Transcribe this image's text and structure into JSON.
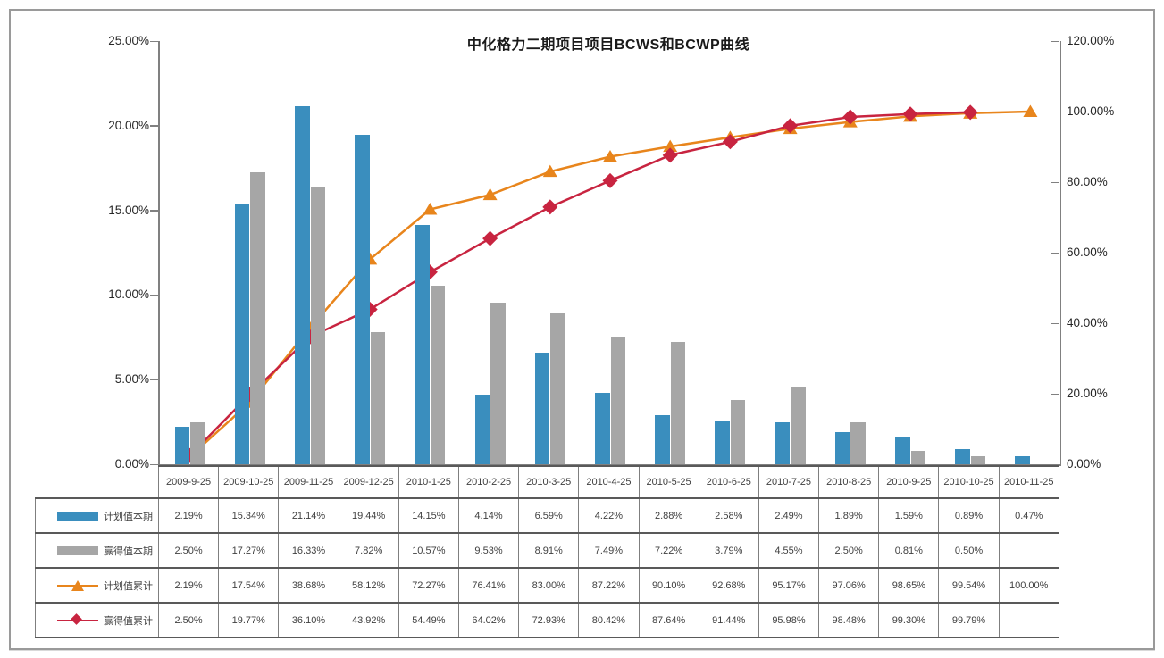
{
  "title": "中化格力二期项目项目BCWS和BCWP曲线",
  "chart_data": {
    "type": "combo",
    "categories": [
      "2009-9-25",
      "2009-10-25",
      "2009-11-25",
      "2009-12-25",
      "2010-1-25",
      "2010-2-25",
      "2010-3-25",
      "2010-4-25",
      "2010-5-25",
      "2010-6-25",
      "2010-7-25",
      "2010-8-25",
      "2010-9-25",
      "2010-10-25",
      "2010-11-25"
    ],
    "series": [
      {
        "name": "计划值本期",
        "type": "bar",
        "axis": "left",
        "marker": "rect",
        "color": "#3a8ebe",
        "values": [
          2.19,
          15.34,
          21.14,
          19.44,
          14.15,
          4.14,
          6.59,
          4.22,
          2.88,
          2.58,
          2.49,
          1.89,
          1.59,
          0.89,
          0.47
        ]
      },
      {
        "name": "赢得值本期",
        "type": "bar",
        "axis": "left",
        "marker": "rect",
        "color": "#a6a6a6",
        "values": [
          2.5,
          17.27,
          16.33,
          7.82,
          10.57,
          9.53,
          8.91,
          7.49,
          7.22,
          3.79,
          4.55,
          2.5,
          0.81,
          0.5,
          null
        ]
      },
      {
        "name": "计划值累计",
        "type": "line",
        "axis": "right",
        "marker": "triangle",
        "color": "#e8851c",
        "values": [
          2.19,
          17.54,
          38.68,
          58.12,
          72.27,
          76.41,
          83.0,
          87.22,
          90.1,
          92.68,
          95.17,
          97.06,
          98.65,
          99.54,
          100.0
        ]
      },
      {
        "name": "赢得值累计",
        "type": "line",
        "axis": "right",
        "marker": "diamond",
        "color": "#c82440",
        "values": [
          2.5,
          19.77,
          36.1,
          43.92,
          54.49,
          64.02,
          72.93,
          80.42,
          87.64,
          91.44,
          95.98,
          98.48,
          99.3,
          99.79,
          null
        ]
      }
    ],
    "left_axis": {
      "min": 0,
      "max": 25,
      "tick_labels": [
        "0.00%",
        "5.00%",
        "10.00%",
        "15.00%",
        "20.00%",
        "25.00%"
      ]
    },
    "right_axis": {
      "min": 0,
      "max": 120,
      "tick_labels": [
        "0.00%",
        "20.00%",
        "40.00%",
        "60.00%",
        "80.00%",
        "100.00%",
        "120.00%"
      ]
    },
    "grid": "off",
    "legend_position": "table-left-column",
    "value_format": "0.00%"
  }
}
